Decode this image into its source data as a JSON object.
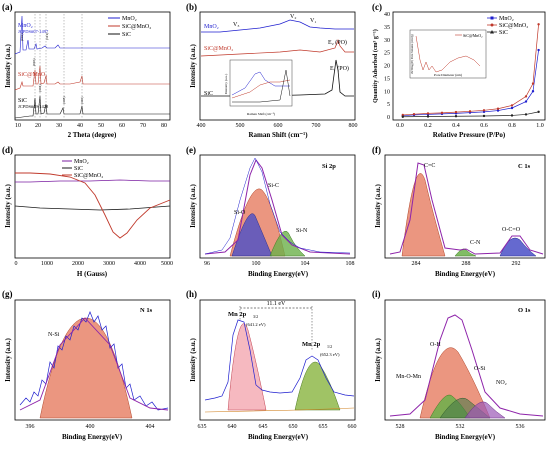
{
  "panels": {
    "a": {
      "label": "(a)",
      "xlabel": "2 Theta (degree)",
      "ylabel": "Intensity (a.u.)",
      "xticks": [
        "10",
        "20",
        "30",
        "40",
        "50",
        "60",
        "70",
        "80"
      ],
      "legend": [
        "MnO₂",
        "SiC@MnO₂",
        "SiC"
      ],
      "ref1": "MnO₂",
      "ref1b": "JCPDS#07-1497",
      "ref2": "SiC@MnO₂",
      "ref3": "SiC",
      "ref3b": "JCPDS#49-1428",
      "peaks": [
        "(002)",
        "(101)",
        "(111)",
        "(003)",
        "(104)",
        "(108)",
        "(110)",
        "(113)",
        "(112)"
      ]
    },
    "b": {
      "label": "(b)",
      "xlabel": "Raman Shift (cm⁻¹)",
      "ylabel": "Intensity (a.u.)",
      "xticks": [
        "400",
        "500",
        "600",
        "700",
        "800"
      ],
      "s1": "MnO₂",
      "s2": "SiC@MnO₂",
      "s3": "SiC",
      "v3": "V₃",
      "v2": "V₂",
      "v1": "V₁",
      "e2": "E₂ (PO)",
      "e1": "E₁ (PO)",
      "inset_xlabel": "Raman Shift (cm⁻¹)",
      "inset_ylabel": "Intensity (a.u.)",
      "inset_xticks": [
        "500",
        "600",
        "700"
      ]
    },
    "c": {
      "label": "(c)",
      "xlabel": "Relative Pressure (P/Po)",
      "ylabel": "Quantity Adsorbed (cm³ g⁻¹)",
      "xticks": [
        "0.0",
        "0.2",
        "0.4",
        "0.6",
        "0.8",
        "1.0"
      ],
      "yticks": [
        "0",
        "5",
        "10",
        "15",
        "20",
        "25",
        "30",
        "35",
        "40"
      ],
      "legend": [
        "MnO₂",
        "SiC@MnO₂",
        "SiC"
      ],
      "inset_legend": "SiC@MnO₂",
      "inset_xlabel": "Pore Diameter (nm)",
      "inset_ylabel": "dV/dlog(D) Pore Volume (cm³/g)"
    },
    "d": {
      "label": "(d)",
      "xlabel": "H (Gauss)",
      "ylabel": "Intensity (a.u.)",
      "xticks": [
        "0",
        "1000",
        "2000",
        "3000",
        "4000",
        "5000"
      ],
      "legend": [
        "MnO₂",
        "SiC",
        "SiC@MnO₂"
      ]
    },
    "e": {
      "label": "(e)",
      "title": "Si 2p",
      "xlabel": "Binding Energy(eV)",
      "ylabel": "Intensity (a.u.)",
      "xticks": [
        "96",
        "100",
        "104",
        "108"
      ],
      "peaks": [
        "Si-C",
        "Si-O",
        "Si-N"
      ]
    },
    "f": {
      "label": "(f)",
      "title": "C 1s",
      "xlabel": "Binding Energy(eV)",
      "ylabel": "Intensity (a.u.)",
      "xticks": [
        "284",
        "288",
        "292"
      ],
      "peaks": [
        "C=C",
        "C-N",
        "O-C=O"
      ]
    },
    "g": {
      "label": "(g)",
      "title": "N 1s",
      "xlabel": "Binding Energy(eV)",
      "ylabel": "Intensity (a.u.)",
      "xticks": [
        "396",
        "400",
        "404"
      ],
      "peaks": [
        "N-Si"
      ]
    },
    "h": {
      "label": "(h)",
      "xlabel": "Binding Energy(eV)",
      "ylabel": "Intensity (a.u.)",
      "xticks": [
        "635",
        "640",
        "645",
        "650",
        "655",
        "660"
      ],
      "split": "11.1 eV",
      "p1": "Mn 2p",
      "p1sub": "3/2",
      "p1v": "(641.2 eV)",
      "p2": "Mn 2p",
      "p2sub": "1/2",
      "p2v": "(652.3 eV)"
    },
    "i": {
      "label": "(i)",
      "title": "O 1s",
      "xlabel": "Binding Energy(eV)",
      "ylabel": "Intensity (a.u.)",
      "xticks": [
        "528",
        "532",
        "536"
      ],
      "peaks": [
        "O-H",
        "Mn-O-Mn",
        "O-Si",
        "NO₂"
      ]
    }
  },
  "chart_data": [
    {
      "panel": "a",
      "type": "line",
      "title": "",
      "xlabel": "2 Theta (degree)",
      "ylabel": "Intensity (a.u.)",
      "xlim": [
        10,
        80
      ],
      "series": [
        {
          "name": "MnO₂",
          "color": "#1f1fcf"
        },
        {
          "name": "SiC@MnO₂",
          "color": "#c0392b"
        },
        {
          "name": "SiC",
          "color": "#000000"
        }
      ]
    },
    {
      "panel": "b",
      "type": "line",
      "xlabel": "Raman Shift (cm⁻¹)",
      "ylabel": "Intensity (a.u.)",
      "xlim": [
        400,
        800
      ],
      "series": [
        {
          "name": "MnO₂",
          "color": "#1f1fcf"
        },
        {
          "name": "SiC@MnO₂",
          "color": "#c0392b"
        },
        {
          "name": "SiC",
          "color": "#000000"
        }
      ]
    },
    {
      "panel": "c",
      "type": "line",
      "xlabel": "Relative Pressure (P/Po)",
      "ylabel": "Quantity Adsorbed (cm³ g⁻¹)",
      "xlim": [
        0,
        1
      ],
      "ylim": [
        0,
        40
      ],
      "series": [
        {
          "name": "MnO₂",
          "color": "#1f1fcf",
          "x": [
            0.02,
            0.1,
            0.2,
            0.3,
            0.4,
            0.5,
            0.6,
            0.7,
            0.8,
            0.9,
            0.95,
            0.99
          ],
          "y": [
            0.5,
            0.8,
            1.0,
            1.2,
            1.4,
            1.7,
            2.0,
            2.5,
            3.5,
            6,
            10,
            26
          ]
        },
        {
          "name": "SiC@MnO₂",
          "color": "#c0392b",
          "x": [
            0.02,
            0.1,
            0.2,
            0.3,
            0.4,
            0.5,
            0.6,
            0.7,
            0.8,
            0.9,
            0.95,
            0.99
          ],
          "y": [
            0.8,
            1.1,
            1.4,
            1.6,
            1.9,
            2.2,
            2.6,
            3.2,
            4.5,
            8,
            13,
            36
          ]
        },
        {
          "name": "SiC",
          "color": "#222222",
          "x": [
            0.02,
            0.2,
            0.4,
            0.6,
            0.8,
            0.9,
            0.99
          ],
          "y": [
            0.1,
            0.2,
            0.3,
            0.4,
            0.6,
            1.0,
            2.0
          ]
        }
      ]
    },
    {
      "panel": "d",
      "type": "line",
      "xlabel": "H (Gauss)",
      "ylabel": "Intensity (a.u.)",
      "xlim": [
        0,
        5000
      ],
      "series": [
        {
          "name": "MnO₂",
          "color": "#7b1fa2"
        },
        {
          "name": "SiC",
          "color": "#1a1a1a"
        },
        {
          "name": "SiC@MnO₂",
          "color": "#c0392b"
        }
      ]
    },
    {
      "panel": "e",
      "type": "area",
      "xlabel": "Binding Energy(eV)",
      "xlim": [
        96,
        108
      ],
      "peaks": [
        {
          "name": "Si-C",
          "center": 100.4
        },
        {
          "name": "Si-O",
          "center": 99.3
        },
        {
          "name": "Si-N",
          "center": 102.3
        }
      ]
    },
    {
      "panel": "f",
      "type": "area",
      "xlabel": "Binding Energy(eV)",
      "xlim": [
        281,
        294
      ],
      "peaks": [
        {
          "name": "C=C",
          "center": 284.8
        },
        {
          "name": "C-N",
          "center": 288.2
        },
        {
          "name": "O-C=O",
          "center": 292.0
        }
      ]
    },
    {
      "panel": "g",
      "type": "area",
      "xlabel": "Binding Energy(eV)",
      "xlim": [
        394,
        406
      ],
      "peaks": [
        {
          "name": "N-Si",
          "center": 399.5
        }
      ]
    },
    {
      "panel": "h",
      "type": "area",
      "xlabel": "Binding Energy(eV)",
      "xlim": [
        635,
        660
      ],
      "peaks": [
        {
          "name": "Mn 2p3/2",
          "center": 641.2
        },
        {
          "name": "Mn 2p1/2",
          "center": 652.3
        }
      ]
    },
    {
      "panel": "i",
      "type": "area",
      "xlabel": "Binding Energy(eV)",
      "xlim": [
        526,
        538
      ],
      "peaks": [
        {
          "name": "O-H",
          "center": 531.2
        },
        {
          "name": "Mn-O-Mn",
          "center": 531.0
        },
        {
          "name": "O-Si",
          "center": 533.0
        },
        {
          "name": "NO₂",
          "center": 533.8
        }
      ]
    }
  ]
}
